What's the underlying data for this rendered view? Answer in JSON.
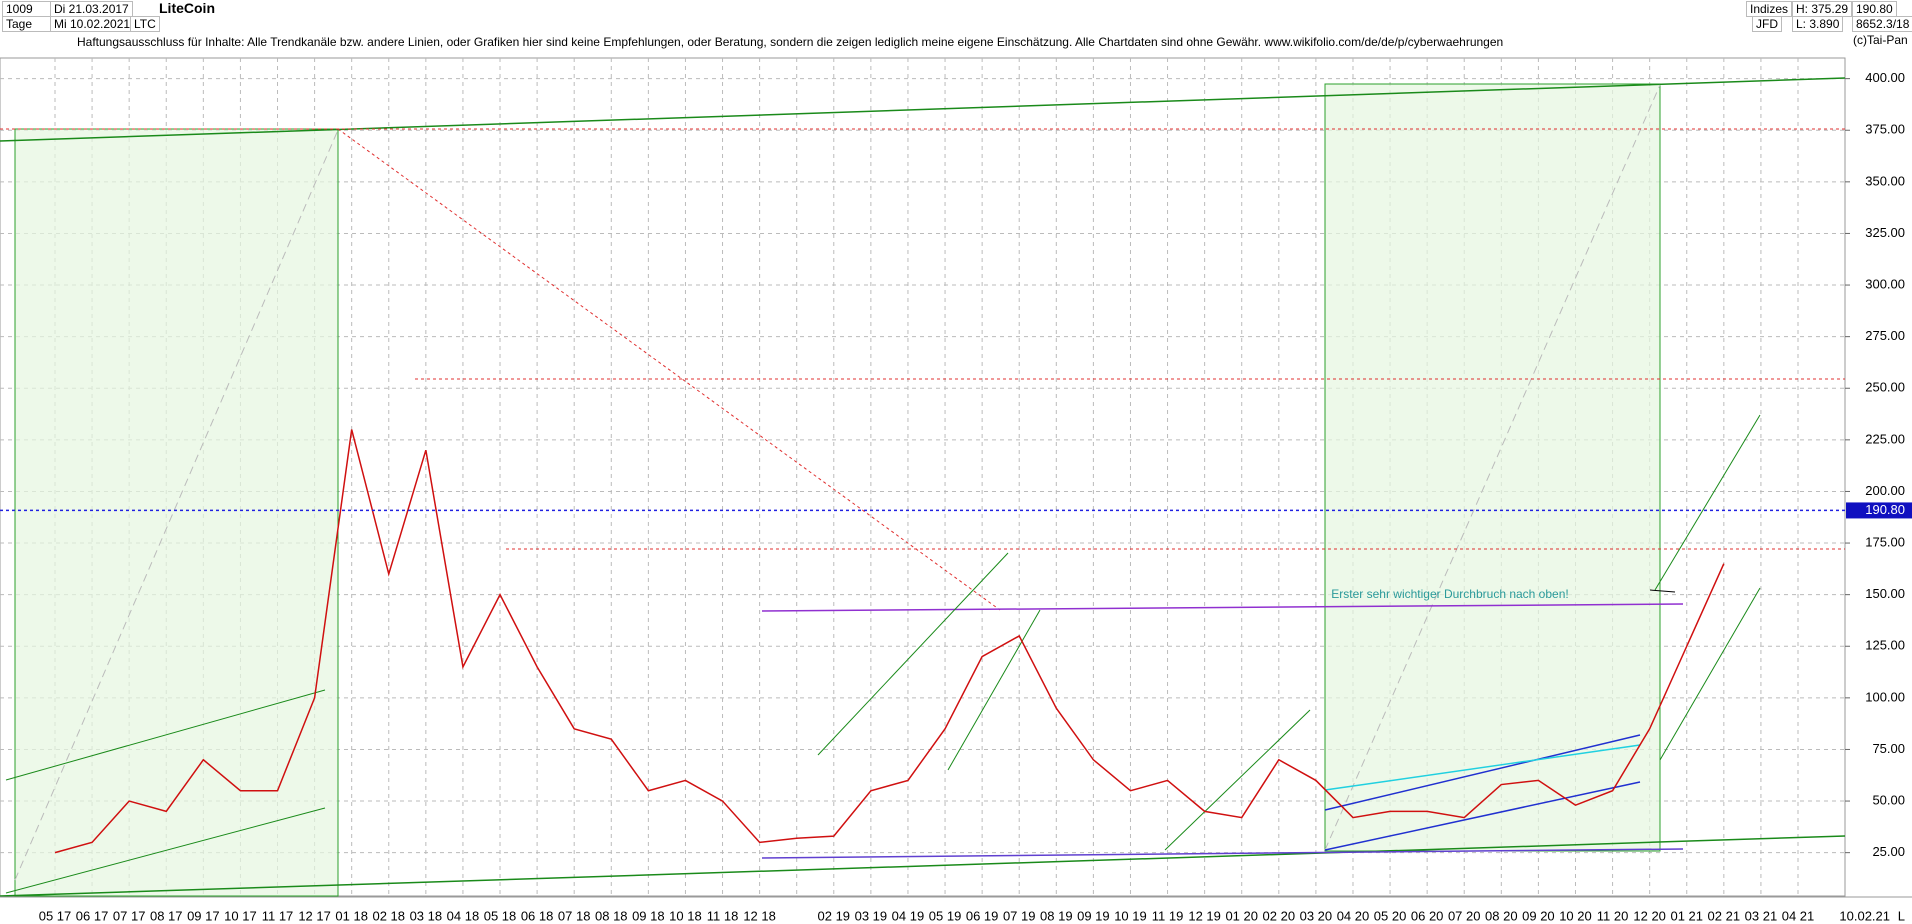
{
  "header": {
    "count": "1009",
    "start_date": "Di 21.03.2017",
    "period": "Tage",
    "end_date": "Mi 10.02.2021",
    "symbol": "LTC",
    "name": "LiteCoin",
    "disclaimer": "Haftungsausschluss für Inhalte: Alle Trendkanäle bzw. andere Linien, oder Grafiken hier sind keine Empfehlungen, oder Beratung, sondern die zeigen lediglich meine eigene Einschätzung. Alle Chartdaten sind ohne Gewähr.  www.wikifolio.com/de/de/p/cyberwaehrungen",
    "market": "Indizes",
    "source": "JFD",
    "high": "H: 375.29",
    "low": "L: 3.890",
    "last": "190.80",
    "volume": "8652.3/18",
    "copyright": "(c)Tai-Pan",
    "bottom_date": "10.02.21",
    "bottom_scale": "L"
  },
  "chart_data": {
    "type": "line",
    "annotation": "Erster sehr wichtiger Durchbruch nach oben!",
    "x": [
      "05 17",
      "06 17",
      "07 17",
      "08 17",
      "09 17",
      "10 17",
      "11 17",
      "12 17",
      "01 18",
      "02 18",
      "03 18",
      "04 18",
      "05 18",
      "06 18",
      "07 18",
      "08 18",
      "09 18",
      "10 18",
      "11 18",
      "12 18",
      null,
      "02 19",
      "03 19",
      "04 19",
      "05 19",
      "06 19",
      "07 19",
      "08 19",
      "09 19",
      "10 19",
      "11 19",
      "12 19",
      "01 20",
      "02 20",
      "03 20",
      "04 20",
      "05 20",
      "06 20",
      "07 20",
      "08 20",
      "09 20",
      "10 20",
      "11 20",
      "12 20",
      "01 21",
      "02 21",
      "03 21",
      "04 21"
    ],
    "series": [
      {
        "name": "LiteCoin",
        "color": "#d01010",
        "values": [
          25,
          30,
          50,
          45,
          70,
          55,
          55,
          100,
          230,
          160,
          220,
          115,
          150,
          115,
          85,
          80,
          55,
          60,
          50,
          30,
          32,
          33,
          55,
          60,
          85,
          120,
          130,
          95,
          70,
          55,
          60,
          45,
          42,
          70,
          60,
          42,
          45,
          45,
          42,
          58,
          60,
          48,
          55,
          85,
          125,
          165,
          null,
          null
        ]
      }
    ],
    "ylim": [
      4,
      410
    ],
    "yticks": [
      {
        "value": 25,
        "label": "25.00"
      },
      {
        "value": 50,
        "label": "50.00"
      },
      {
        "value": 75,
        "label": "75.00"
      },
      {
        "value": 100,
        "label": "100.00"
      },
      {
        "value": 125,
        "label": "125.00"
      },
      {
        "value": 150,
        "label": "150.00"
      },
      {
        "value": 175,
        "label": "175.00"
      },
      {
        "value": 200,
        "label": "200.00"
      },
      {
        "value": 225,
        "label": "225.00"
      },
      {
        "value": 250,
        "label": "250.00"
      },
      {
        "value": 275,
        "label": "275.00"
      },
      {
        "value": 300,
        "label": "300.00"
      },
      {
        "value": 325,
        "label": "325.00"
      },
      {
        "value": 350,
        "label": "350.00"
      },
      {
        "value": 375,
        "label": "375.00"
      },
      {
        "value": 400,
        "label": "400.00"
      }
    ],
    "last_price": {
      "value": 190.8,
      "label": "190.80"
    },
    "grid": true
  }
}
